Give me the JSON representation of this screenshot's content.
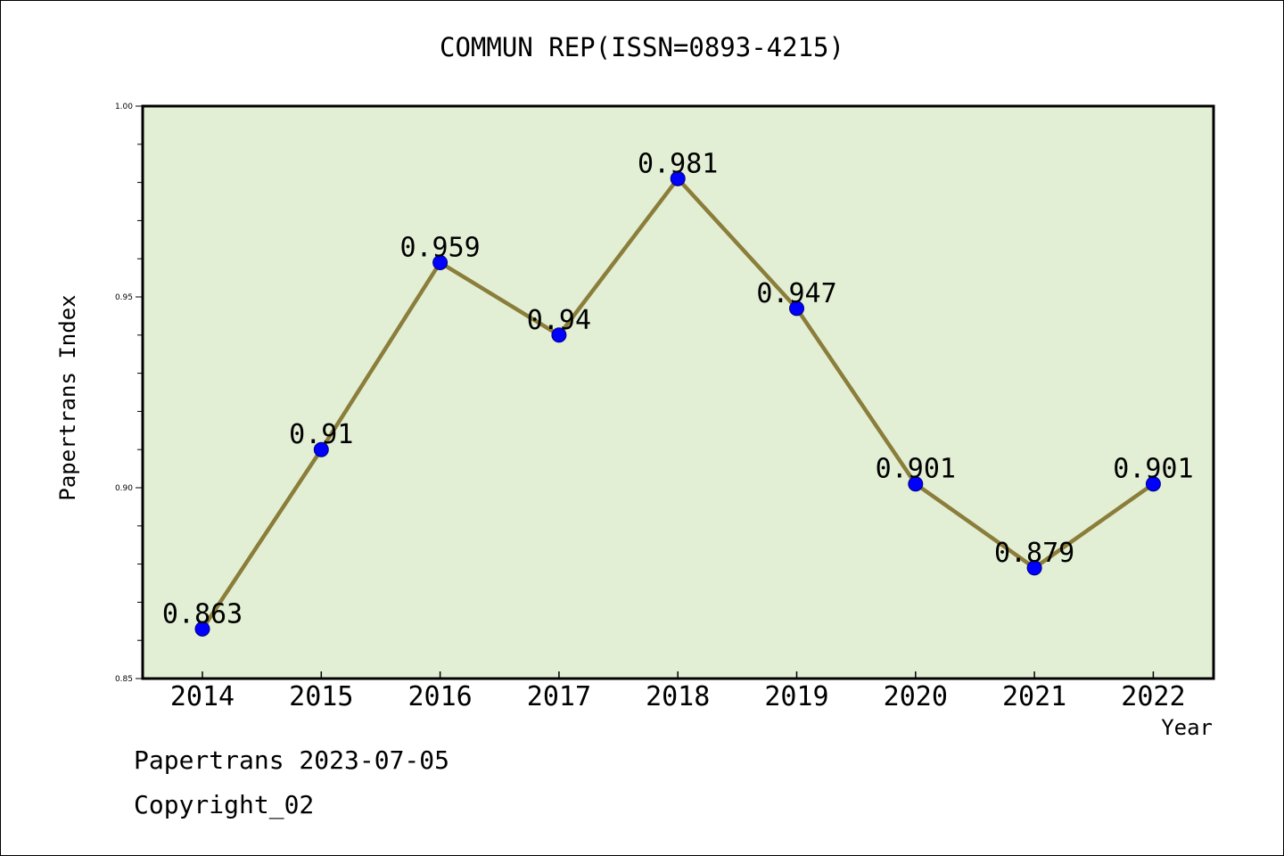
{
  "chart_data": {
    "type": "line",
    "title": "COMMUN REP(ISSN=0893-4215)",
    "xlabel": "Year",
    "ylabel": "Papertrans Index",
    "categories": [
      "2014",
      "2015",
      "2016",
      "2017",
      "2018",
      "2019",
      "2020",
      "2021",
      "2022"
    ],
    "values": [
      0.863,
      0.91,
      0.959,
      0.94,
      0.981,
      0.947,
      0.901,
      0.879,
      0.901
    ],
    "data_labels": [
      "0.863",
      "0.91",
      "0.959",
      "0.94",
      "0.981",
      "0.947",
      "0.901",
      "0.879",
      "0.901"
    ],
    "ylim": [
      0.85,
      1.0
    ],
    "yticks": [
      "0.85",
      "0.90",
      "0.95",
      "1.00"
    ],
    "yticks_values": [
      0.85,
      0.9,
      0.95,
      1.0
    ],
    "grid": false,
    "plot_background": "#e2efd5",
    "line_color": "#8b7d3a",
    "marker_color": "#0000ff"
  },
  "footer": {
    "line1": "Papertrans 2023-07-05",
    "line2": "Copyright_02"
  }
}
